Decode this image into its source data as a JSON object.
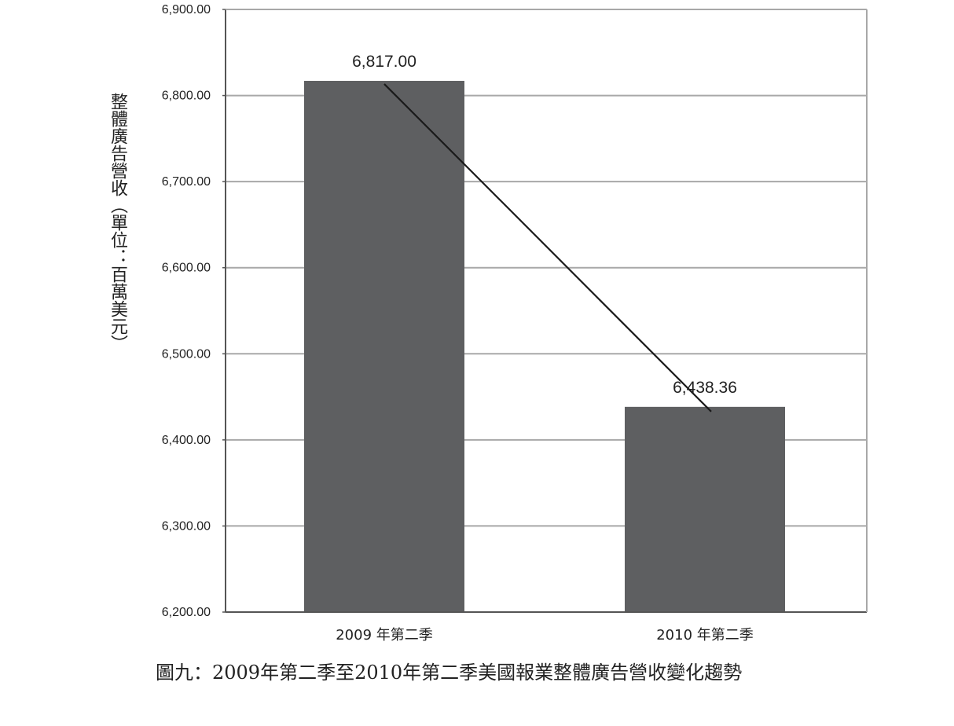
{
  "chart_data": {
    "type": "bar",
    "categories": [
      "2009 年第二季",
      "2010 年第二季"
    ],
    "values": [
      6817.0,
      6438.36
    ],
    "data_labels": [
      "6,817.00",
      "6,438.36"
    ],
    "ylabel": "整體廣告營收（單位：百萬美元）",
    "xlabel": "",
    "ylim": [
      6200,
      6900
    ],
    "yticks": [
      6200,
      6300,
      6400,
      6500,
      6600,
      6700,
      6800,
      6900
    ],
    "ytick_labels": [
      "6,200.00",
      "6,300.00",
      "6,400.00",
      "6,500.00",
      "6,600.00",
      "6,700.00",
      "6,800.00",
      "6,900.00"
    ],
    "trend_line": true,
    "grid": "horizontal",
    "bar_color": "#5e5f61",
    "grid_color": "#a8a8a8",
    "axis_color": "#555555",
    "line_color": "#1a1a1a"
  },
  "caption": "圖九：2009年第二季至2010年第二季美國報業整體廣告營收變化趨勢"
}
